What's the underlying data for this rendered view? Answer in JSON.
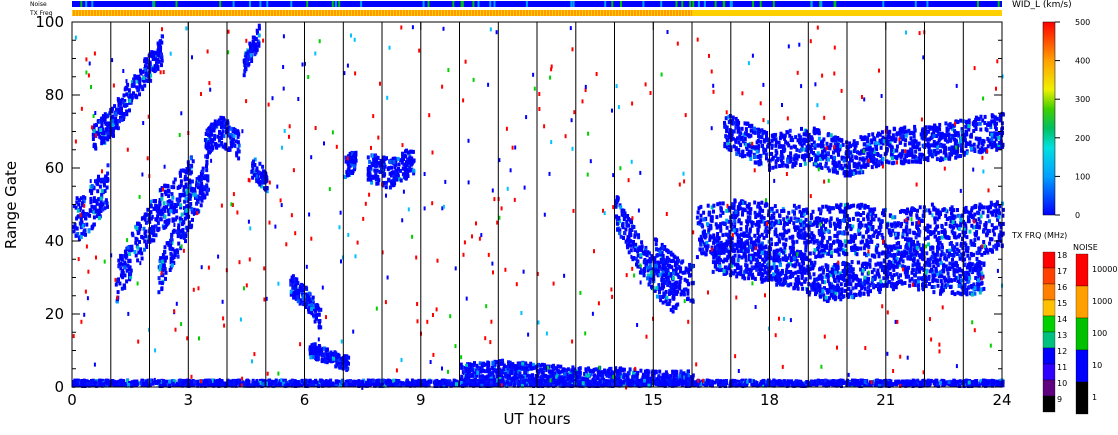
{
  "chart_data": {
    "type": "heatmap",
    "xlabel": "UT hours",
    "ylabel": "Range Gate",
    "xlim": [
      0,
      24
    ],
    "ylim": [
      0,
      100
    ],
    "x_ticks": [
      "0",
      "3",
      "6",
      "9",
      "12",
      "15",
      "18",
      "21",
      "24"
    ],
    "y_ticks": [
      "0",
      "20",
      "40",
      "60",
      "80",
      "100"
    ],
    "scan_boundaries_ut": [
      1.0,
      2.0,
      3.0,
      4.0,
      5.0,
      6.0,
      7.0,
      8.0,
      9.0,
      10.0,
      11.0,
      12.0,
      13.0,
      14.0,
      15.0,
      16.0,
      17.0,
      18.0,
      19.0,
      20.0,
      21.0,
      22.0,
      23.0
    ],
    "top_strips": {
      "noise_label": "Noise",
      "freq_label": "TX Freq",
      "freq_change_ut": 16.0
    },
    "wid_colorbar": {
      "title": "WID_L (km/s)",
      "ticks": [
        "500",
        "400",
        "300",
        "200",
        "100",
        "0"
      ],
      "range": [
        0,
        500
      ]
    },
    "txfrq_colorbar": {
      "title": "TX FRQ (MHz)",
      "ticks": [
        "18",
        "17",
        "16",
        "15",
        "14",
        "13",
        "12",
        "11",
        "10",
        "9"
      ],
      "colors": [
        "#ff0000",
        "#ff4000",
        "#ff8000",
        "#ffc000",
        "#00d000",
        "#00c080",
        "#0000ff",
        "#3000ff",
        "#600080",
        "#000000"
      ]
    },
    "noise_colorbar": {
      "title": "NOISE",
      "ticks": [
        "10000",
        "1000",
        "100",
        "10",
        "1"
      ],
      "colors": [
        "#ff0000",
        "#ffa000",
        "#00c000",
        "#0000ff",
        "#000000"
      ]
    },
    "echo_bands": [
      {
        "t": [
          0.0,
          0.4,
          0.9
        ],
        "g": [
          45,
          48,
          55
        ],
        "w": 6
      },
      {
        "t": [
          1.1,
          1.6,
          2.2,
          2.7,
          3.1
        ],
        "g": [
          28,
          38,
          48,
          52,
          58
        ],
        "w": 6
      },
      {
        "t": [
          2.2,
          2.7,
          3.2,
          3.5
        ],
        "g": [
          30,
          40,
          52,
          58
        ],
        "w": 5
      },
      {
        "t": [
          3.4,
          3.8,
          4.3
        ],
        "g": [
          66,
          70,
          66
        ],
        "w": 4
      },
      {
        "t": [
          4.6,
          5.0
        ],
        "g": [
          60,
          56
        ],
        "w": 3
      },
      {
        "t": [
          5.6,
          6.0,
          6.4
        ],
        "g": [
          28,
          24,
          18
        ],
        "w": 3
      },
      {
        "t": [
          6.1,
          6.6,
          7.1
        ],
        "g": [
          10,
          8,
          6
        ],
        "w": 2
      },
      {
        "t": [
          7.0,
          7.3
        ],
        "g": [
          60,
          62
        ],
        "w": 3
      },
      {
        "t": [
          7.6,
          8.2,
          8.8
        ],
        "g": [
          60,
          58,
          62
        ],
        "w": 4
      },
      {
        "t": [
          10.0,
          11.0,
          12.0,
          13.0,
          14.0,
          15.0,
          16.0
        ],
        "g": [
          3,
          4,
          3,
          2,
          2,
          1,
          1
        ],
        "w": 3
      },
      {
        "t": [
          14.0,
          14.5,
          15.0,
          15.6
        ],
        "g": [
          48,
          38,
          30,
          24
        ],
        "w": 5
      },
      {
        "t": [
          15.0,
          15.6,
          16.0
        ],
        "g": [
          36,
          30,
          28
        ],
        "w": 5
      },
      {
        "t": [
          16.1,
          17.0,
          18.0,
          19.0,
          20.0,
          21.0,
          22.0,
          23.0,
          24.0
        ],
        "g": [
          42,
          44,
          43,
          42,
          43,
          42,
          43,
          42,
          44
        ],
        "w": 7
      },
      {
        "t": [
          16.5,
          17.5,
          18.5,
          19.5,
          20.5,
          21.5,
          22.5,
          23.5
        ],
        "g": [
          36,
          34,
          32,
          28,
          30,
          32,
          30,
          30
        ],
        "w": 5
      },
      {
        "t": [
          16.8,
          18.0,
          19.0,
          20.0,
          21.0,
          22.0,
          23.0,
          24.0
        ],
        "g": [
          70,
          64,
          66,
          62,
          66,
          66,
          68,
          70
        ],
        "w": 5
      },
      {
        "t": [
          0.5,
          1.0,
          1.6,
          2.3
        ],
        "g": [
          68,
          72,
          82,
          92
        ],
        "w": 4
      },
      {
        "t": [
          4.4,
          4.8
        ],
        "g": [
          88,
          96
        ],
        "w": 3
      },
      {
        "t": [
          0.0,
          24.0
        ],
        "g": [
          0.5,
          0.5
        ],
        "w": 1
      }
    ]
  }
}
